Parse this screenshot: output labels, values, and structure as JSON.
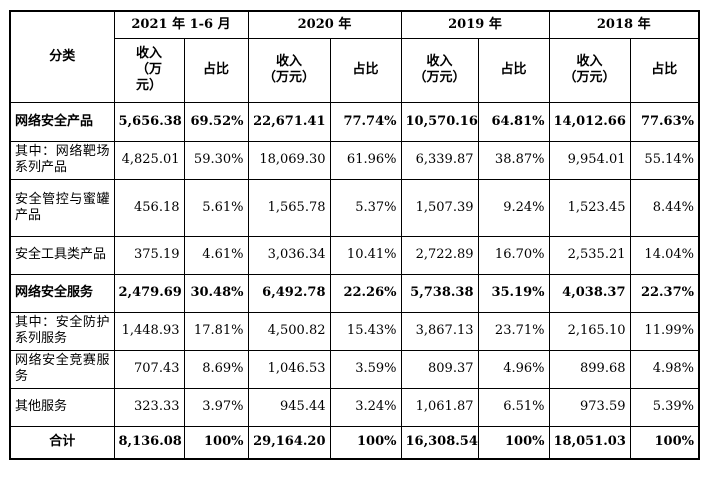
{
  "header": {
    "category_label": "分类",
    "periods": [
      "2021 年 1-6 月",
      "2020 年",
      "2019 年",
      "2018 年"
    ],
    "revenue_label_first": "收入\n（万\n元）",
    "revenue_label": "收入\n（万元）",
    "share_label": "占比"
  },
  "rows": [
    {
      "category": "网络安全产品",
      "bold": true,
      "values": [
        "5,656.38",
        "69.52%",
        "22,671.41",
        "77.74%",
        "10,570.16",
        "64.81%",
        "14,012.66",
        "77.63%"
      ]
    },
    {
      "category": "其中：网络靶场系列产品",
      "bold": false,
      "values": [
        "4,825.01",
        "59.30%",
        "18,069.30",
        "61.96%",
        "6,339.87",
        "38.87%",
        "9,954.01",
        "55.14%"
      ]
    },
    {
      "category": "安全管控与蜜罐产品",
      "bold": false,
      "values": [
        "456.18",
        "5.61%",
        "1,565.78",
        "5.37%",
        "1,507.39",
        "9.24%",
        "1,523.45",
        "8.44%"
      ]
    },
    {
      "category": "安全工具类产品",
      "bold": false,
      "values": [
        "375.19",
        "4.61%",
        "3,036.34",
        "10.41%",
        "2,722.89",
        "16.70%",
        "2,535.21",
        "14.04%"
      ]
    },
    {
      "category": "网络安全服务",
      "bold": true,
      "values": [
        "2,479.69",
        "30.48%",
        "6,492.78",
        "22.26%",
        "5,738.38",
        "35.19%",
        "4,038.37",
        "22.37%"
      ]
    },
    {
      "category": "其中：安全防护系列服务",
      "bold": false,
      "values": [
        "1,448.93",
        "17.81%",
        "4,500.82",
        "15.43%",
        "3,867.13",
        "23.71%",
        "2,165.10",
        "11.99%"
      ]
    },
    {
      "category": "网络安全竞赛服务",
      "bold": false,
      "values": [
        "707.43",
        "8.69%",
        "1,046.53",
        "3.59%",
        "809.37",
        "4.96%",
        "899.68",
        "4.98%"
      ]
    },
    {
      "category": "其他服务",
      "bold": false,
      "values": [
        "323.33",
        "3.97%",
        "945.44",
        "3.24%",
        "1,061.87",
        "6.51%",
        "973.59",
        "5.39%"
      ]
    },
    {
      "category": "合计",
      "bold": true,
      "total": true,
      "values": [
        "8,136.08",
        "100%",
        "29,164.20",
        "100%",
        "16,308.54",
        "100%",
        "18,051.03",
        "100%"
      ]
    }
  ]
}
